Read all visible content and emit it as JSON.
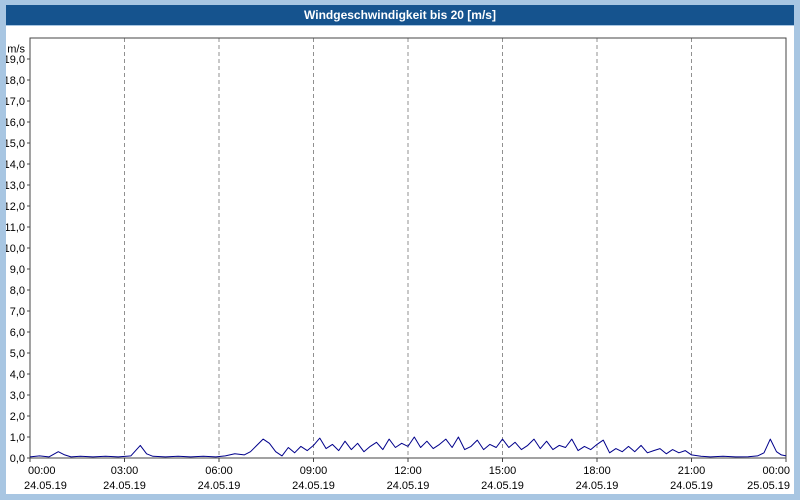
{
  "page": {
    "background_color": "#a8c6e2"
  },
  "header": {
    "title": "Windgeschwindigkeit bis 20 [m/s]",
    "background_color": "#15538e",
    "text_color": "#ffffff"
  },
  "chart_data": {
    "type": "line",
    "title": "Windgeschwindigkeit bis 20 [m/s]",
    "ylabel": "m/s",
    "ylim": [
      0,
      20
    ],
    "ytick_values": [
      0,
      1,
      2,
      3,
      4,
      5,
      6,
      7,
      8,
      9,
      10,
      11,
      12,
      13,
      14,
      15,
      16,
      17,
      18,
      19
    ],
    "ytick_labels": [
      "0,0",
      "1,0",
      "2,0",
      "3,0",
      "4,0",
      "5,0",
      "6,0",
      "7,0",
      "8,0",
      "9,0",
      "10,0",
      "11,0",
      "12,0",
      "13,0",
      "14,0",
      "15,0",
      "16,0",
      "17,0",
      "18,0",
      "19,0"
    ],
    "xlim_hours": [
      0,
      24
    ],
    "xticks": [
      {
        "hour": 0,
        "time": "00:00",
        "date": "24.05.19"
      },
      {
        "hour": 3,
        "time": "03:00",
        "date": "24.05.19"
      },
      {
        "hour": 6,
        "time": "06:00",
        "date": "24.05.19"
      },
      {
        "hour": 9,
        "time": "09:00",
        "date": "24.05.19"
      },
      {
        "hour": 12,
        "time": "12:00",
        "date": "24.05.19"
      },
      {
        "hour": 15,
        "time": "15:00",
        "date": "24.05.19"
      },
      {
        "hour": 18,
        "time": "18:00",
        "date": "24.05.19"
      },
      {
        "hour": 21,
        "time": "21:00",
        "date": "24.05.19"
      },
      {
        "hour": 24,
        "time": "00:00",
        "date": "25.05.19"
      }
    ],
    "grid": {
      "vertical_dashed_at_hours": [
        3,
        6,
        9,
        12,
        15,
        18,
        21
      ],
      "horizontal": false,
      "grid_color": "#909090",
      "border_color": "#444444"
    },
    "legend": "none",
    "series": [
      {
        "name": "Windgeschwindigkeit",
        "unit": "m/s",
        "color": "#00008b",
        "points": [
          [
            0,
            0.05
          ],
          [
            0.3,
            0.1
          ],
          [
            0.6,
            0.05
          ],
          [
            0.9,
            0.3
          ],
          [
            1.1,
            0.15
          ],
          [
            1.3,
            0.05
          ],
          [
            1.6,
            0.08
          ],
          [
            2,
            0.05
          ],
          [
            2.4,
            0.08
          ],
          [
            2.8,
            0.05
          ],
          [
            3.2,
            0.1
          ],
          [
            3.5,
            0.6
          ],
          [
            3.7,
            0.2
          ],
          [
            3.9,
            0.08
          ],
          [
            4.3,
            0.05
          ],
          [
            4.7,
            0.08
          ],
          [
            5.1,
            0.05
          ],
          [
            5.5,
            0.08
          ],
          [
            5.9,
            0.05
          ],
          [
            6.2,
            0.1
          ],
          [
            6.5,
            0.2
          ],
          [
            6.8,
            0.15
          ],
          [
            7.0,
            0.3
          ],
          [
            7.2,
            0.6
          ],
          [
            7.4,
            0.9
          ],
          [
            7.6,
            0.7
          ],
          [
            7.8,
            0.3
          ],
          [
            8.0,
            0.1
          ],
          [
            8.2,
            0.5
          ],
          [
            8.4,
            0.25
          ],
          [
            8.6,
            0.55
          ],
          [
            8.8,
            0.35
          ],
          [
            9.0,
            0.6
          ],
          [
            9.2,
            0.95
          ],
          [
            9.4,
            0.45
          ],
          [
            9.6,
            0.65
          ],
          [
            9.8,
            0.35
          ],
          [
            10.0,
            0.8
          ],
          [
            10.2,
            0.4
          ],
          [
            10.4,
            0.7
          ],
          [
            10.6,
            0.3
          ],
          [
            10.8,
            0.55
          ],
          [
            11.0,
            0.75
          ],
          [
            11.2,
            0.4
          ],
          [
            11.4,
            0.9
          ],
          [
            11.6,
            0.5
          ],
          [
            11.8,
            0.7
          ],
          [
            12.0,
            0.55
          ],
          [
            12.2,
            1.0
          ],
          [
            12.4,
            0.5
          ],
          [
            12.6,
            0.8
          ],
          [
            12.8,
            0.45
          ],
          [
            13.0,
            0.65
          ],
          [
            13.2,
            0.9
          ],
          [
            13.4,
            0.5
          ],
          [
            13.6,
            1.0
          ],
          [
            13.8,
            0.4
          ],
          [
            14.0,
            0.55
          ],
          [
            14.2,
            0.85
          ],
          [
            14.4,
            0.4
          ],
          [
            14.6,
            0.65
          ],
          [
            14.8,
            0.5
          ],
          [
            15.0,
            0.9
          ],
          [
            15.2,
            0.5
          ],
          [
            15.4,
            0.75
          ],
          [
            15.6,
            0.4
          ],
          [
            15.8,
            0.6
          ],
          [
            16.0,
            0.9
          ],
          [
            16.2,
            0.45
          ],
          [
            16.4,
            0.8
          ],
          [
            16.6,
            0.4
          ],
          [
            16.8,
            0.6
          ],
          [
            17.0,
            0.5
          ],
          [
            17.2,
            0.9
          ],
          [
            17.4,
            0.35
          ],
          [
            17.6,
            0.55
          ],
          [
            17.8,
            0.4
          ],
          [
            18.0,
            0.65
          ],
          [
            18.2,
            0.85
          ],
          [
            18.4,
            0.25
          ],
          [
            18.6,
            0.45
          ],
          [
            18.8,
            0.3
          ],
          [
            19.0,
            0.55
          ],
          [
            19.2,
            0.3
          ],
          [
            19.4,
            0.6
          ],
          [
            19.6,
            0.25
          ],
          [
            19.8,
            0.35
          ],
          [
            20.0,
            0.45
          ],
          [
            20.2,
            0.2
          ],
          [
            20.4,
            0.4
          ],
          [
            20.6,
            0.25
          ],
          [
            20.8,
            0.35
          ],
          [
            21.0,
            0.15
          ],
          [
            21.3,
            0.08
          ],
          [
            21.6,
            0.05
          ],
          [
            22.0,
            0.08
          ],
          [
            22.4,
            0.05
          ],
          [
            22.8,
            0.06
          ],
          [
            23.1,
            0.1
          ],
          [
            23.3,
            0.25
          ],
          [
            23.5,
            0.9
          ],
          [
            23.7,
            0.3
          ],
          [
            23.85,
            0.15
          ],
          [
            24,
            0.1
          ]
        ]
      }
    ]
  }
}
